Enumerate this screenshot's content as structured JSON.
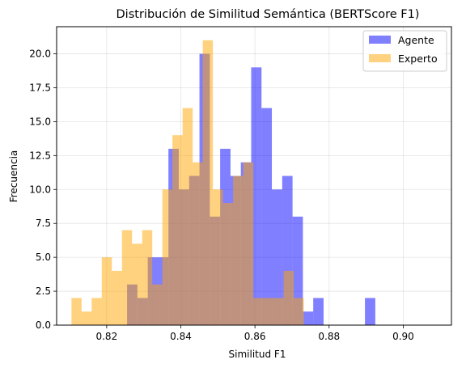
{
  "chart_data": {
    "type": "histogram",
    "title": "Distribución de Similitud Semántica (BERTScore F1)",
    "xlabel": "Similitud F1",
    "ylabel": "Frecuencia",
    "xlim": [
      0.8065,
      0.913
    ],
    "ylim": [
      0,
      22
    ],
    "xticks": [
      0.82,
      0.84,
      0.86,
      0.88,
      0.9
    ],
    "xtick_labels": [
      "0.82",
      "0.84",
      "0.86",
      "0.88",
      "0.90"
    ],
    "yticks": [
      0,
      2.5,
      5,
      7.5,
      10,
      12.5,
      15,
      17.5,
      20
    ],
    "ytick_labels": [
      "0.0",
      "2.5",
      "5.0",
      "7.5",
      "10.0",
      "12.5",
      "15.0",
      "17.5",
      "20.0"
    ],
    "grid": true,
    "legend_position": "top-right",
    "series": [
      {
        "name": "Agente",
        "color": "#0000ff",
        "alpha": 0.5,
        "bin_start": 0.8255,
        "bin_width": 0.00279,
        "counts": [
          3,
          2,
          5,
          5,
          13,
          10,
          11,
          20,
          8,
          13,
          11,
          12,
          19,
          16,
          10,
          11,
          8,
          1,
          2,
          0,
          0,
          0,
          0,
          2
        ]
      },
      {
        "name": "Experto",
        "color": "#ffa500",
        "alpha": 0.5,
        "bin_start": 0.8105,
        "bin_width": 0.002725,
        "counts": [
          2,
          1,
          2,
          5,
          4,
          7,
          6,
          7,
          3,
          10,
          14,
          16,
          12,
          21,
          10,
          9,
          11,
          12,
          2,
          2,
          2,
          4,
          2
        ]
      }
    ]
  }
}
